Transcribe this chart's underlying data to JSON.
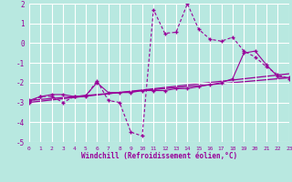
{
  "xlabel": "Windchill (Refroidissement éolien,°C)",
  "bg_color": "#b8e8e0",
  "grid_color": "#ffffff",
  "line_color": "#990099",
  "xlim": [
    0,
    23
  ],
  "ylim": [
    -5,
    2
  ],
  "xticks": [
    0,
    1,
    2,
    3,
    4,
    5,
    6,
    7,
    8,
    9,
    10,
    11,
    12,
    13,
    14,
    15,
    16,
    17,
    18,
    19,
    20,
    21,
    22,
    23
  ],
  "yticks": [
    -5,
    -4,
    -3,
    -2,
    -1,
    0,
    1,
    2
  ],
  "series1_x": [
    0,
    1,
    2,
    3,
    4,
    5,
    6,
    7,
    8,
    9,
    10,
    11,
    12,
    13,
    14,
    15,
    16,
    17,
    18,
    19,
    20,
    21,
    22,
    23
  ],
  "series1_y": [
    -3.0,
    -2.7,
    -2.7,
    -3.0,
    -2.7,
    -2.7,
    -1.9,
    -2.9,
    -3.0,
    -4.5,
    -4.7,
    1.7,
    0.5,
    0.55,
    2.0,
    0.7,
    0.2,
    0.1,
    0.3,
    -0.4,
    -0.7,
    -1.2,
    -1.6,
    -1.8
  ],
  "series2_x": [
    0,
    1,
    2,
    3,
    4,
    5,
    6,
    7,
    8,
    9,
    10,
    11,
    12,
    13,
    14,
    15,
    16,
    17,
    18,
    19,
    20,
    21,
    22,
    23
  ],
  "series2_y": [
    -2.9,
    -2.7,
    -2.6,
    -2.6,
    -2.7,
    -2.65,
    -2.0,
    -2.5,
    -2.5,
    -2.5,
    -2.4,
    -2.4,
    -2.4,
    -2.3,
    -2.3,
    -2.2,
    -2.1,
    -2.0,
    -1.8,
    -0.5,
    -0.4,
    -1.1,
    -1.7,
    -1.75
  ],
  "trend1_x": [
    0,
    23
  ],
  "trend1_y": [
    -2.9,
    -1.75
  ],
  "trend2_x": [
    0,
    23
  ],
  "trend2_y": [
    -3.0,
    -1.55
  ]
}
